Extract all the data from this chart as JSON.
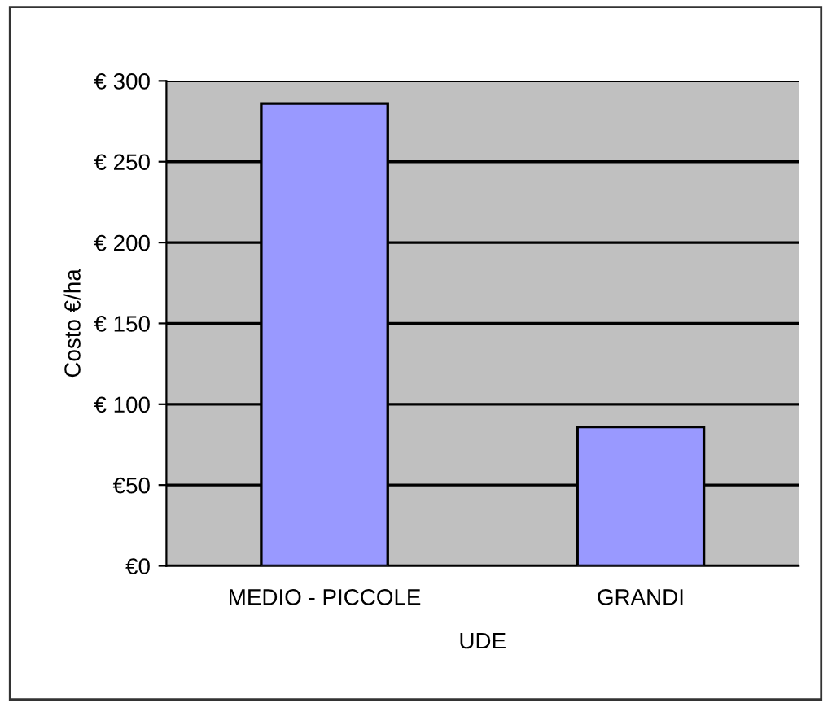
{
  "chart_data": {
    "type": "bar",
    "xlabel": "UDE",
    "ylabel": "Costo €/ha",
    "categories": [
      "MEDIO - PICCOLE",
      "GRANDI"
    ],
    "values": [
      286,
      86
    ],
    "color": "#9999ff",
    "ylim": [
      0,
      300
    ],
    "yticks": [
      {
        "value": 0,
        "label": "€0"
      },
      {
        "value": 50,
        "label": "€50"
      },
      {
        "value": 100,
        "label": "€ 100"
      },
      {
        "value": 150,
        "label": "€ 150"
      },
      {
        "value": 200,
        "label": "€ 200"
      },
      {
        "value": 250,
        "label": "€ 250"
      },
      {
        "value": 300,
        "label": "€ 300"
      }
    ],
    "grid": "y"
  }
}
